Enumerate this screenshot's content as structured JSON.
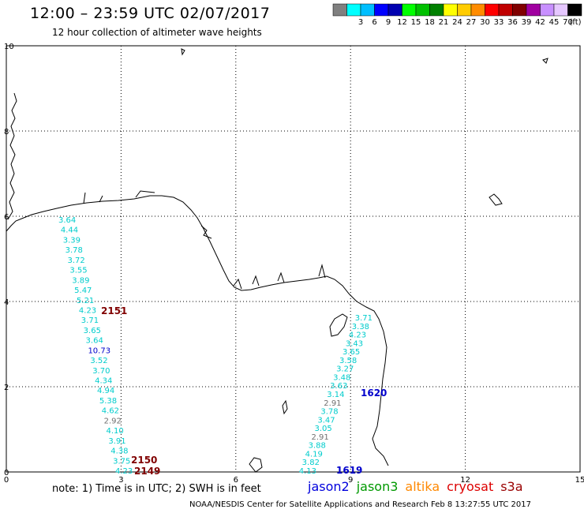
{
  "title": "12:00 – 23:59 UTC 02/07/2017",
  "subtitle": "12 hour collection of altimeter wave heights",
  "colorbar": {
    "unit": "(ft)",
    "bins": [
      {
        "color": "#808080",
        "label": ""
      },
      {
        "color": "#00ffff",
        "label": "3"
      },
      {
        "color": "#00bfff",
        "label": "6"
      },
      {
        "color": "#0000ff",
        "label": "9"
      },
      {
        "color": "#0000b0",
        "label": "12"
      },
      {
        "color": "#00ff00",
        "label": "15"
      },
      {
        "color": "#00c000",
        "label": "18"
      },
      {
        "color": "#008000",
        "label": "21"
      },
      {
        "color": "#ffff00",
        "label": "24"
      },
      {
        "color": "#ffcc00",
        "label": "27"
      },
      {
        "color": "#ff8c00",
        "label": "30"
      },
      {
        "color": "#ff0000",
        "label": "33"
      },
      {
        "color": "#c00000",
        "label": "36"
      },
      {
        "color": "#800000",
        "label": "39"
      },
      {
        "color": "#a000a0",
        "label": "42"
      },
      {
        "color": "#c890ff",
        "label": "45"
      },
      {
        "color": "#e6c8ff",
        "label": "70"
      },
      {
        "color": "#000000",
        "label": ""
      }
    ]
  },
  "axes": {
    "x_ticks": [
      "0",
      "3",
      "6",
      "9",
      "12",
      "15"
    ],
    "y_ticks": [
      "0",
      "2",
      "4",
      "6",
      "8",
      "10"
    ]
  },
  "tracks": {
    "west": {
      "values": [
        "3.64",
        "4.44",
        "3.39",
        "3.78",
        "3.72",
        "3.55",
        "3.89",
        "5.47",
        "5.21",
        "4.23",
        "3.71",
        "3.65",
        "3.64",
        "10.73",
        "3.52",
        "3.70",
        "4.34",
        "4.94",
        "5.38",
        "4.62",
        "2.92",
        "4.10",
        "3.91",
        "4.38",
        "3.75",
        "4.23"
      ],
      "colors": [
        "#00cccc",
        "#00cccc",
        "#00cccc",
        "#00cccc",
        "#00cccc",
        "#00cccc",
        "#00cccc",
        "#00cccc",
        "#00cccc",
        "#00cccc",
        "#00cccc",
        "#00cccc",
        "#00cccc",
        "#0000cc",
        "#00cccc",
        "#00cccc",
        "#00cccc",
        "#00cccc",
        "#00cccc",
        "#00cccc",
        "#707070",
        "#00cccc",
        "#00cccc",
        "#00cccc",
        "#00cccc",
        "#00cccc"
      ]
    },
    "east": {
      "values": [
        "3.71",
        "3.38",
        "4.23",
        "3.43",
        "3.65",
        "3.58",
        "3.27",
        "3.48",
        "3.63",
        "3.14",
        "2.91",
        "3.78",
        "3.47",
        "3.05",
        "2.91",
        "3.88",
        "4.19",
        "3.82",
        "4.13"
      ],
      "colors": [
        "#00cccc",
        "#00cccc",
        "#00cccc",
        "#00cccc",
        "#00cccc",
        "#00cccc",
        "#00cccc",
        "#00cccc",
        "#00cccc",
        "#00cccc",
        "#707070",
        "#00cccc",
        "#00cccc",
        "#00cccc",
        "#707070",
        "#00cccc",
        "#00cccc",
        "#00cccc",
        "#00cccc"
      ]
    }
  },
  "pass_labels": [
    {
      "text": "2151",
      "color": "#800000"
    },
    {
      "text": "2150",
      "color": "#800000"
    },
    {
      "text": "2149",
      "color": "#800000"
    },
    {
      "text": "1620",
      "color": "#0000cc"
    },
    {
      "text": "1619",
      "color": "#0000cc"
    }
  ],
  "note": "note:  1) Time is in UTC;  2) SWH is in feet",
  "satellites": [
    {
      "name": "jason2",
      "color": "#0000dd"
    },
    {
      "name": "jason3",
      "color": "#009900"
    },
    {
      "name": "altika",
      "color": "#ff8800"
    },
    {
      "name": "cryosat",
      "color": "#dd0000"
    },
    {
      "name": "s3a",
      "color": "#990000"
    }
  ],
  "footer": "NOAA/NESDIS Center for Satellite Applications and Research    Feb  8 13:27:55 UTC 2017"
}
